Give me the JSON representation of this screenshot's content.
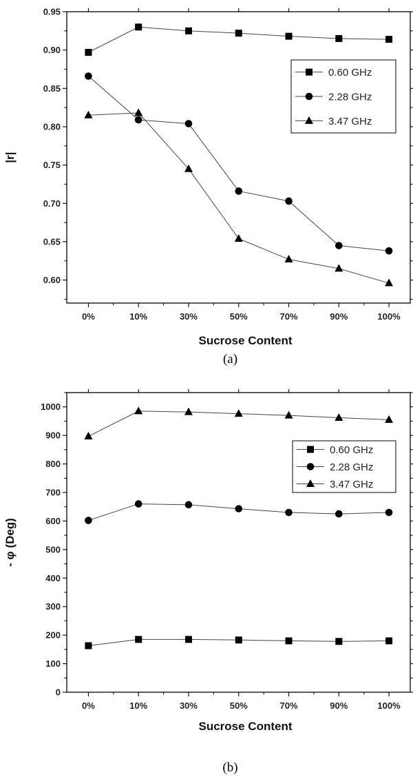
{
  "chart_data": [
    {
      "type": "line",
      "caption": "(a)",
      "xlabel": "Sucrose Content",
      "ylabel": "|r|",
      "categories": [
        "0%",
        "10%",
        "30%",
        "50%",
        "70%",
        "90%",
        "100%"
      ],
      "ylim": [
        0.57,
        0.95
      ],
      "yticks": [
        "0.60",
        "0.65",
        "0.70",
        "0.75",
        "0.80",
        "0.85",
        "0.90",
        "0.95"
      ],
      "legend_position": "upper-right",
      "series": [
        {
          "name": "0.60 GHz",
          "marker": "square",
          "values": [
            0.897,
            0.93,
            0.925,
            0.922,
            0.918,
            0.915,
            0.914
          ]
        },
        {
          "name": "2.28 GHz",
          "marker": "circle",
          "values": [
            0.866,
            0.809,
            0.804,
            0.716,
            0.703,
            0.645,
            0.638
          ]
        },
        {
          "name": "3.47 GHz",
          "marker": "triangle",
          "values": [
            0.815,
            0.818,
            0.745,
            0.654,
            0.627,
            0.615,
            0.596
          ]
        }
      ]
    },
    {
      "type": "line",
      "caption": "(b)",
      "xlabel": "Sucrose Content",
      "ylabel": "- φ (Deg)",
      "categories": [
        "0%",
        "10%",
        "30%",
        "50%",
        "70%",
        "90%",
        "100%"
      ],
      "ylim": [
        0,
        1050
      ],
      "yticks": [
        "0",
        "100",
        "200",
        "300",
        "400",
        "500",
        "600",
        "700",
        "800",
        "900",
        "1000"
      ],
      "legend_position": "upper-right",
      "series": [
        {
          "name": "0.60 GHz",
          "marker": "square",
          "values": [
            163,
            185,
            185,
            183,
            180,
            178,
            180
          ]
        },
        {
          "name": "2.28 GHz",
          "marker": "circle",
          "values": [
            602,
            660,
            657,
            643,
            630,
            625,
            630
          ]
        },
        {
          "name": "3.47 GHz",
          "marker": "triangle",
          "values": [
            897,
            985,
            982,
            976,
            970,
            962,
            955
          ]
        }
      ]
    }
  ]
}
